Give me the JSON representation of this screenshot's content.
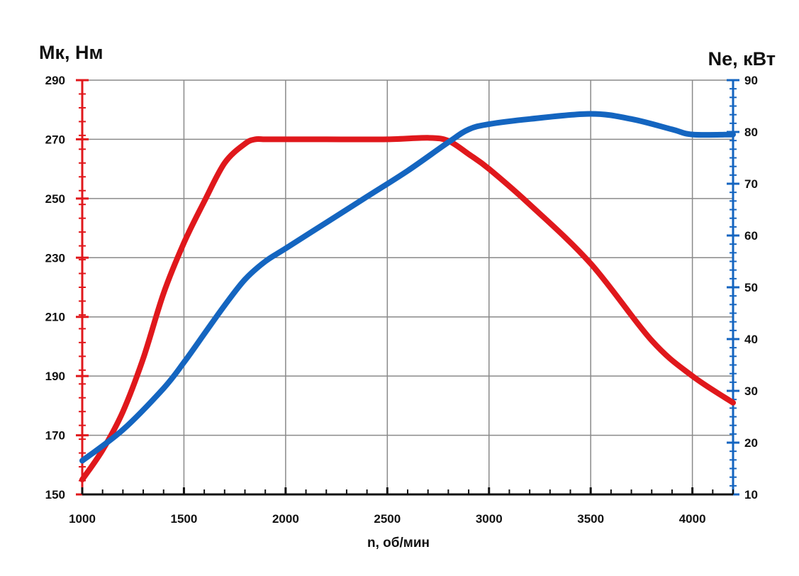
{
  "chart_data": {
    "type": "line",
    "x_axis": {
      "label": "n, об/мин",
      "range": [
        1000,
        4200
      ],
      "ticks": [
        "1000",
        "1500",
        "2000",
        "2500",
        "3000",
        "3500",
        "4000"
      ],
      "tick_values": [
        1000,
        1500,
        2000,
        2500,
        3000,
        3500,
        4000
      ],
      "minor_step": 100
    },
    "y_left": {
      "label": "Мк, Нм",
      "range": [
        150,
        290
      ],
      "ticks": [
        "150",
        "170",
        "190",
        "210",
        "230",
        "250",
        "270",
        "290"
      ],
      "tick_values": [
        150,
        170,
        190,
        210,
        230,
        250,
        270,
        290
      ],
      "color": "#e0181c"
    },
    "y_right": {
      "label": "Ne, кВт",
      "range": [
        10,
        90
      ],
      "ticks": [
        "10",
        "20",
        "30",
        "40",
        "50",
        "60",
        "70",
        "80",
        "90"
      ],
      "tick_values": [
        10,
        20,
        30,
        40,
        50,
        60,
        70,
        80,
        90
      ],
      "color": "#1465c0"
    },
    "grid": true,
    "series": [
      {
        "axis": "left",
        "color": "#e0181c",
        "x": [
          1000,
          1100,
          1200,
          1300,
          1400,
          1500,
          1600,
          1700,
          1800,
          1850,
          1900,
          2000,
          2200,
          2500,
          2700,
          2800,
          2900,
          3000,
          3200,
          3500,
          3800,
          4000,
          4200
        ],
        "y": [
          155,
          165,
          178,
          196,
          218,
          235,
          249,
          262,
          268.5,
          270,
          270,
          270,
          270,
          270,
          270.5,
          269.5,
          265,
          260,
          248,
          228,
          202,
          190,
          181
        ]
      },
      {
        "axis": "right",
        "color": "#1465c0",
        "x": [
          1000,
          1200,
          1400,
          1500,
          1600,
          1700,
          1800,
          1900,
          2000,
          2200,
          2400,
          2600,
          2800,
          2900,
          3000,
          3200,
          3500,
          3700,
          3900,
          4000,
          4200
        ],
        "y": [
          16.5,
          22.5,
          30.5,
          35.5,
          41,
          46.5,
          51.5,
          55,
          57.5,
          62.5,
          67.5,
          72.5,
          78,
          80.5,
          81.5,
          82.5,
          83.5,
          82.5,
          80.5,
          79.5,
          79.5
        ]
      }
    ]
  }
}
